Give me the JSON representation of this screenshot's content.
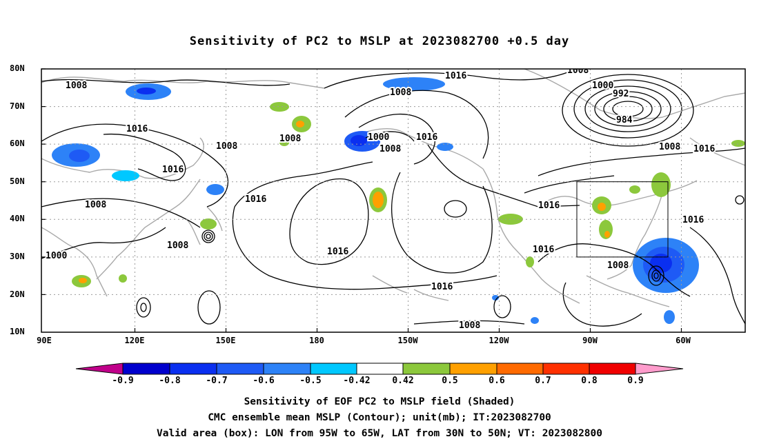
{
  "title": "Sensitivity of PC2 to MSLP at 2023082700 +0.5 day",
  "y_axis_labels": [
    "80N",
    "70N",
    "60N",
    "50N",
    "40N",
    "30N",
    "20N",
    "10N"
  ],
  "x_axis_labels": [
    "90E",
    "120E",
    "150E",
    "180",
    "150W",
    "120W",
    "90W",
    "60W"
  ],
  "contour_labels": [
    "1008",
    "1016",
    "1008",
    "1000",
    "992",
    "984",
    "1008",
    "1016",
    "1016",
    "1016",
    "1008",
    "1008",
    "1000",
    "1008",
    "1016",
    "1016",
    "1008",
    "1016",
    "1016",
    "1008",
    "1008",
    "1016",
    "1016",
    "1016",
    "1008",
    "1000",
    "1008"
  ],
  "colorbar": {
    "labels": [
      "-0.9",
      "-0.8",
      "-0.7",
      "-0.6",
      "-0.5",
      "-0.42",
      "0.42",
      "0.5",
      "0.6",
      "0.7",
      "0.8",
      "0.9"
    ],
    "colors": [
      "#c0008a",
      "#0000cd",
      "#0a2ff0",
      "#1e5af5",
      "#2d82f7",
      "#00c8ff",
      "#ffffff",
      "#8cc83c",
      "#ffa000",
      "#ff6a00",
      "#ff3000",
      "#f00000",
      "#ff9ccc"
    ]
  },
  "captions": [
    "Sensitivity of EOF PC2 to MSLP field (Shaded)",
    "CMC ensemble mean MSLP (Contour); unit(mb); IT:2023082700",
    "Valid area (box): LON from 95W to 65W, LAT from 30N to 50N; VT: 2023082800"
  ]
}
